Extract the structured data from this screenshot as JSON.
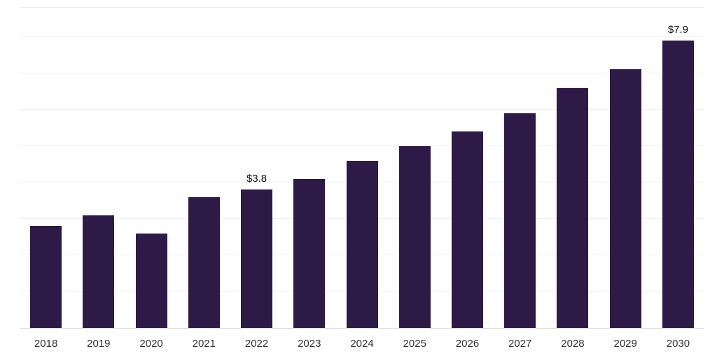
{
  "chart_data": {
    "type": "bar",
    "title": "",
    "xlabel": "",
    "ylabel": "",
    "categories": [
      "2018",
      "2019",
      "2020",
      "2021",
      "2022",
      "2023",
      "2024",
      "2025",
      "2026",
      "2027",
      "2028",
      "2029",
      "2030"
    ],
    "values": [
      2.8,
      3.1,
      2.6,
      3.6,
      3.8,
      4.1,
      4.6,
      5.0,
      5.4,
      5.9,
      6.6,
      7.1,
      7.9
    ],
    "value_labels": [
      "",
      "",
      "",
      "",
      "$3.8",
      "",
      "",
      "",
      "",
      "",
      "",
      "",
      "$7.9"
    ],
    "unit_prefix": "$",
    "ylim": [
      0,
      8.8
    ],
    "gridline_step": 1,
    "grid_on": true,
    "legend_position": "none",
    "bar_color": "#2e1a47",
    "axis_label_color": "#333333",
    "value_label_color": "#111111",
    "gridline_color": "#f1f1f1",
    "baseline_color": "#d9d9d9"
  }
}
